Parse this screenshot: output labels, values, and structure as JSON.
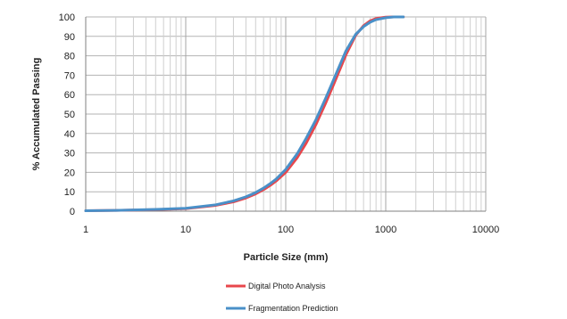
{
  "chart_data": {
    "type": "line",
    "title": "",
    "xlabel": "Particle Size (mm)",
    "ylabel": "% Accumulated Passing",
    "x_scale": "log",
    "xlim": [
      1,
      10000
    ],
    "ylim": [
      0,
      100
    ],
    "x_ticks": [
      "1",
      "10",
      "100",
      "1000",
      "10000"
    ],
    "y_ticks": [
      "0",
      "10",
      "20",
      "30",
      "40",
      "50",
      "60",
      "70",
      "80",
      "90",
      "100"
    ],
    "grid": true,
    "legend_position": "bottom",
    "series": [
      {
        "name": "Digital Photo Analysis",
        "color": "#e8474c",
        "x": [
          1,
          2,
          5,
          10,
          20,
          30,
          40,
          50,
          60,
          70,
          80,
          100,
          130,
          160,
          200,
          250,
          300,
          400,
          500,
          600,
          700,
          800,
          1000,
          1200,
          1500
        ],
        "y": [
          0.2,
          0.4,
          0.8,
          1.3,
          3.0,
          4.8,
          6.8,
          8.9,
          11.1,
          13.3,
          15.5,
          20.0,
          27.5,
          35.0,
          44.5,
          55.5,
          65.0,
          80.5,
          90.5,
          95.5,
          98.0,
          99.2,
          99.9,
          100,
          100
        ]
      },
      {
        "name": "Fragmentation Prediction",
        "color": "#4a90c8",
        "x": [
          1,
          2,
          5,
          10,
          20,
          30,
          40,
          50,
          60,
          70,
          80,
          100,
          130,
          160,
          200,
          250,
          300,
          400,
          500,
          600,
          700,
          800,
          1000,
          1200,
          1500
        ],
        "y": [
          0.2,
          0.4,
          0.9,
          1.5,
          3.3,
          5.3,
          7.4,
          9.6,
          11.9,
          14.2,
          16.5,
          21.5,
          29.5,
          37.5,
          47.0,
          58.0,
          67.5,
          82.5,
          91.0,
          95.0,
          97.3,
          98.6,
          99.6,
          100,
          100
        ]
      }
    ]
  }
}
